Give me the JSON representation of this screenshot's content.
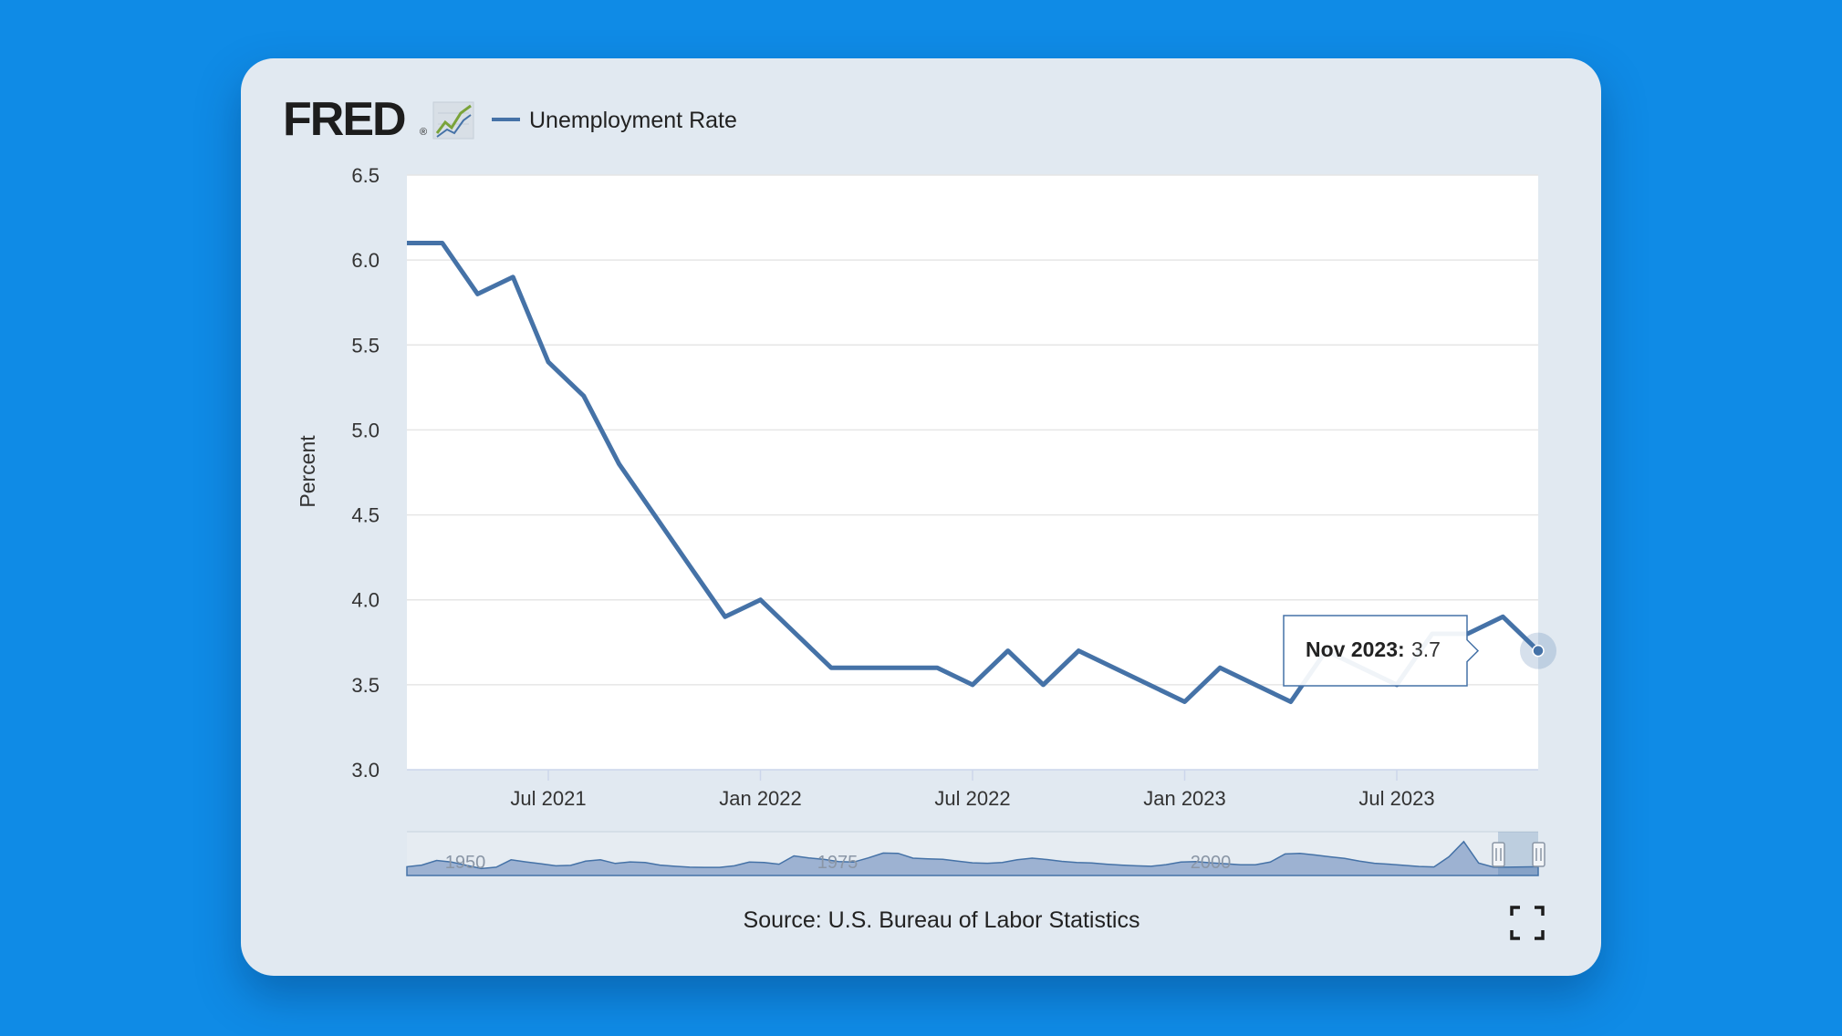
{
  "header": {
    "logo_text": "FRED",
    "registered_mark": "®",
    "legend_label": "Unemployment Rate"
  },
  "colors": {
    "background": "#0f8be6",
    "card": "#e1e9f1",
    "series": "#4572a7",
    "navigator_fill": "#8fa8cc",
    "logo_chart_green": "#7aa33a"
  },
  "chart_data": {
    "type": "line",
    "ylabel": "Percent",
    "ylim": [
      3.0,
      6.5
    ],
    "yticks": [
      3.0,
      3.5,
      4.0,
      4.5,
      5.0,
      5.5,
      6.0,
      6.5
    ],
    "ytick_labels": [
      "3.0",
      "3.5",
      "4.0",
      "4.5",
      "5.0",
      "5.5",
      "6.0",
      "6.5"
    ],
    "xlim": [
      "2021-03",
      "2023-11"
    ],
    "xticks": [
      "2021-07",
      "2022-01",
      "2022-07",
      "2023-01",
      "2023-07"
    ],
    "xtick_labels": [
      "Jul 2021",
      "Jan 2022",
      "Jul 2022",
      "Jan 2023",
      "Jul 2023"
    ],
    "grid": true,
    "series": [
      {
        "name": "Unemployment Rate",
        "x": [
          "2021-03",
          "2021-04",
          "2021-05",
          "2021-06",
          "2021-07",
          "2021-08",
          "2021-09",
          "2021-10",
          "2021-11",
          "2021-12",
          "2022-01",
          "2022-02",
          "2022-03",
          "2022-04",
          "2022-05",
          "2022-06",
          "2022-07",
          "2022-08",
          "2022-09",
          "2022-10",
          "2022-11",
          "2022-12",
          "2023-01",
          "2023-02",
          "2023-03",
          "2023-04",
          "2023-05",
          "2023-06",
          "2023-07",
          "2023-08",
          "2023-09",
          "2023-10",
          "2023-11"
        ],
        "values": [
          6.1,
          6.1,
          5.8,
          5.9,
          5.4,
          5.2,
          4.8,
          4.5,
          4.2,
          3.9,
          4.0,
          3.8,
          3.6,
          3.6,
          3.6,
          3.6,
          3.5,
          3.7,
          3.5,
          3.7,
          3.6,
          3.5,
          3.4,
          3.6,
          3.5,
          3.4,
          3.7,
          3.6,
          3.5,
          3.8,
          3.8,
          3.9,
          3.7
        ]
      }
    ],
    "tooltip": {
      "date_label": "Nov 2023:",
      "value_label": "3.7"
    },
    "source": "Source: U.S. Bureau of Labor Statistics",
    "navigator": {
      "labels": [
        "1950",
        "1975",
        "2000"
      ],
      "range_years": [
        1948,
        2024
      ],
      "values": [
        3.8,
        4.5,
        6.5,
        5.8,
        4.4,
        3.0,
        3.6,
        6.8,
        5.9,
        5.1,
        4.2,
        4.4,
        6.2,
        6.8,
        5.2,
        5.9,
        5.6,
        4.5,
        4.0,
        3.6,
        3.5,
        3.5,
        4.2,
        5.8,
        5.6,
        4.9,
        8.5,
        7.6,
        7.0,
        6.0,
        5.8,
        7.6,
        9.7,
        9.6,
        7.5,
        7.2,
        7.0,
        6.2,
        5.5,
        5.3,
        5.6,
        6.8,
        7.5,
        6.9,
        6.1,
        5.6,
        5.4,
        4.9,
        4.5,
        4.2,
        4.0,
        4.7,
        5.8,
        6.0,
        5.5,
        5.1,
        4.6,
        4.6,
        5.8,
        9.3,
        9.6,
        8.9,
        8.1,
        7.4,
        6.2,
        5.3,
        4.9,
        4.4,
        3.9,
        3.7,
        8.1,
        14.7,
        5.4,
        3.6,
        3.6,
        3.7,
        3.8
      ]
    }
  },
  "controls": {
    "fullscreen_icon": "expand-icon"
  }
}
